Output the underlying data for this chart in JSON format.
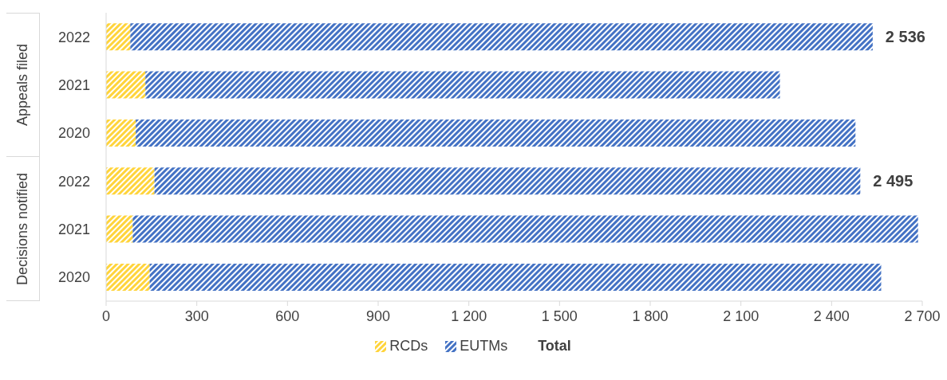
{
  "chart_data": {
    "type": "bar",
    "orientation": "horizontal",
    "stacked": true,
    "categories": [
      "2022",
      "2021",
      "2020",
      "2022",
      "2021",
      "2020"
    ],
    "series": [
      {
        "name": "RCDs",
        "color": "#ffd43b",
        "values": [
          80,
          130,
          98,
          160,
          88,
          144
        ]
      },
      {
        "name": "EUTMs",
        "color": "#4472c4",
        "values": [
          2456,
          2099,
          2381,
          2335,
          2598,
          2420
        ]
      }
    ],
    "totals": [
      "2 536",
      null,
      null,
      "2 495",
      null,
      null
    ],
    "legend_title": "Total",
    "annotations": [
      "Appeals filed",
      "Decisions notified"
    ],
    "xlim": [
      0,
      2700
    ],
    "xticks": [
      0,
      {
        "value": 300,
        "label": "300"
      },
      {
        "value": 600,
        "label": "600"
      },
      {
        "value": 900,
        "label": "900"
      },
      {
        "value": 1200,
        "label": "1 200"
      },
      {
        "value": 1500,
        "label": "1 500"
      },
      {
        "value": 1800,
        "label": "1 800"
      },
      {
        "value": 2100,
        "label": "2 100"
      },
      {
        "value": 2400,
        "label": "2 400"
      },
      {
        "value": 2700,
        "label": "2 700"
      }
    ],
    "legend": "bottom",
    "grid": false
  }
}
